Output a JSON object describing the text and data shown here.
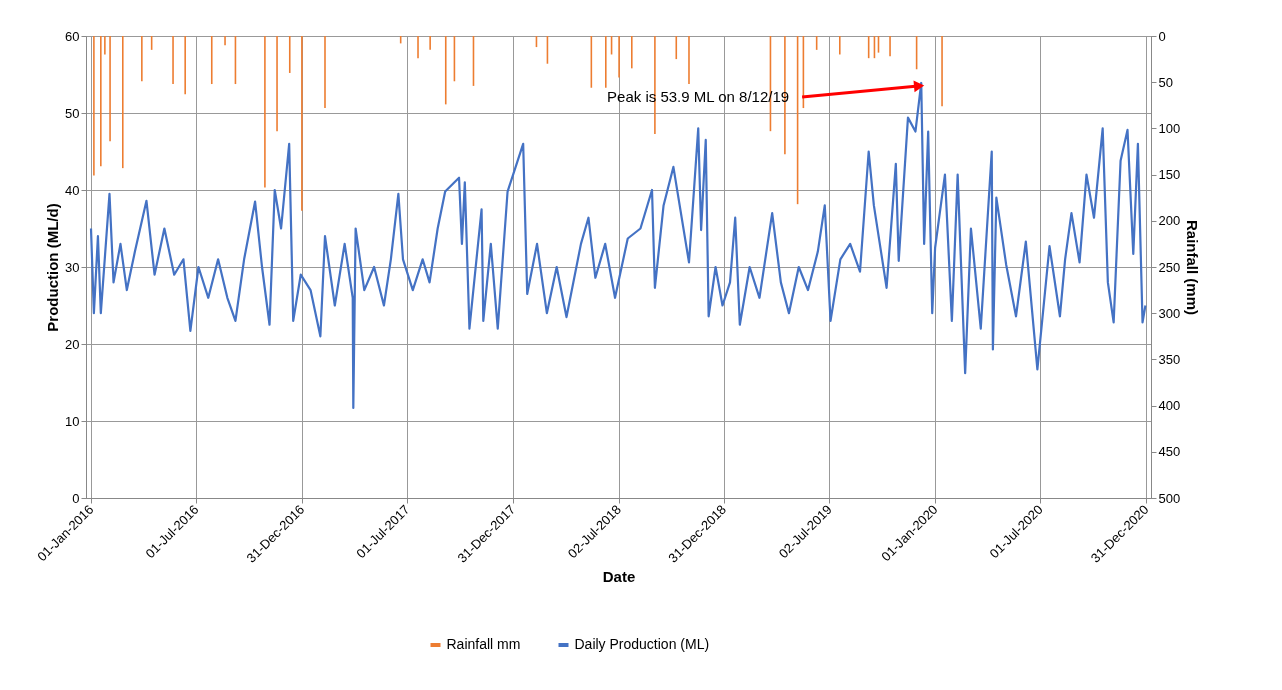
{
  "chart_data": {
    "type": "line",
    "xlabel": "Date",
    "ylabel": "Production (ML/d)",
    "y2label": "Rainfall (mm)",
    "xlim": [
      "2016-01-01",
      "2020-12-31"
    ],
    "xticks": [
      {
        "value": "2016-01-01",
        "label": "01-Jan-2016"
      },
      {
        "value": "2016-07-01",
        "label": "01-Jul-2016"
      },
      {
        "value": "2016-12-31",
        "label": "31-Dec-2016"
      },
      {
        "value": "2017-07-01",
        "label": "01-Jul-2017"
      },
      {
        "value": "2017-12-31",
        "label": "31-Dec-2017"
      },
      {
        "value": "2018-07-02",
        "label": "02-Jul-2018"
      },
      {
        "value": "2018-12-31",
        "label": "31-Dec-2018"
      },
      {
        "value": "2019-07-02",
        "label": "02-Jul-2019"
      },
      {
        "value": "2020-01-01",
        "label": "01-Jan-2020"
      },
      {
        "value": "2020-07-01",
        "label": "01-Jul-2020"
      },
      {
        "value": "2020-12-31",
        "label": "31-Dec-2020"
      }
    ],
    "ylim": [
      0,
      60
    ],
    "yticks": [
      0,
      10,
      20,
      30,
      40,
      50,
      60
    ],
    "y2lim": [
      500,
      0
    ],
    "y2ticks": [
      0,
      50,
      100,
      150,
      200,
      250,
      300,
      350,
      400,
      450,
      500
    ],
    "grid": true,
    "legend": "bottom",
    "annotations": [
      {
        "text": "Peak is 53.9 ML on 8/12/19",
        "x": "2019-12-08",
        "y": 53.9
      }
    ],
    "series": [
      {
        "name": "Rainfall mm",
        "type": "bar",
        "axis": "y2",
        "color": "#ed7d31",
        "x": [
          "2016-01-06",
          "2016-01-18",
          "2016-01-25",
          "2016-02-03",
          "2016-02-25",
          "2016-03-29",
          "2016-04-15",
          "2016-05-22",
          "2016-06-12",
          "2016-07-28",
          "2016-08-20",
          "2016-09-07",
          "2016-10-28",
          "2016-11-18",
          "2016-12-10",
          "2016-12-31",
          "2017-02-09",
          "2017-06-20",
          "2017-07-20",
          "2017-08-10",
          "2017-09-06",
          "2017-09-21",
          "2017-10-24",
          "2018-02-10",
          "2018-03-01",
          "2018-05-16",
          "2018-06-10",
          "2018-06-20",
          "2018-07-03",
          "2018-07-25",
          "2018-09-03",
          "2018-10-10",
          "2018-11-01",
          "2019-03-22",
          "2019-04-16",
          "2019-05-08",
          "2019-05-18",
          "2019-06-10",
          "2019-07-20",
          "2019-09-08",
          "2019-09-18",
          "2019-09-25",
          "2019-10-15",
          "2019-11-30",
          "2020-01-13"
        ],
        "values": [
          151,
          141,
          20,
          114,
          143,
          49,
          15,
          52,
          63,
          52,
          10,
          52,
          164,
          103,
          40,
          189,
          78,
          8,
          24,
          15,
          74,
          49,
          54,
          12,
          30,
          56,
          56,
          20,
          45,
          35,
          106,
          25,
          52,
          103,
          128,
          182,
          78,
          15,
          20,
          24,
          24,
          18,
          22,
          36,
          76
        ]
      },
      {
        "name": "Daily Production (ML)",
        "color": "#4472c4",
        "x": [
          "2016-01-01",
          "2016-01-06",
          "2016-01-13",
          "2016-01-18",
          "2016-02-02",
          "2016-02-09",
          "2016-02-21",
          "2016-03-03",
          "2016-03-17",
          "2016-04-06",
          "2016-04-20",
          "2016-05-07",
          "2016-05-24",
          "2016-06-09",
          "2016-06-21",
          "2016-07-05",
          "2016-07-22",
          "2016-08-08",
          "2016-08-24",
          "2016-09-07",
          "2016-09-22",
          "2016-10-11",
          "2016-10-23",
          "2016-11-05",
          "2016-11-14",
          "2016-11-25",
          "2016-12-09",
          "2016-12-16",
          "2016-12-29",
          "2017-01-15",
          "2017-02-01",
          "2017-02-09",
          "2017-02-26",
          "2017-03-15",
          "2017-03-29",
          "2017-03-30",
          "2017-04-03",
          "2017-04-18",
          "2017-05-05",
          "2017-05-22",
          "2017-06-03",
          "2017-06-16",
          "2017-06-24",
          "2017-07-11",
          "2017-07-28",
          "2017-08-09",
          "2017-08-23",
          "2017-09-05",
          "2017-09-29",
          "2017-10-04",
          "2017-10-09",
          "2017-10-17",
          "2017-11-07",
          "2017-11-10",
          "2017-11-23",
          "2017-12-05",
          "2017-12-22",
          "2018-01-18",
          "2018-01-25",
          "2018-02-11",
          "2018-02-28",
          "2018-03-17",
          "2018-04-03",
          "2018-04-28",
          "2018-05-11",
          "2018-05-23",
          "2018-06-09",
          "2018-06-26",
          "2018-07-18",
          "2018-08-09",
          "2018-08-29",
          "2018-09-03",
          "2018-09-18",
          "2018-10-05",
          "2018-11-01",
          "2018-11-17",
          "2018-11-22",
          "2018-11-30",
          "2018-12-05",
          "2018-12-17",
          "2018-12-29",
          "2019-01-11",
          "2019-01-20",
          "2019-01-28",
          "2019-02-14",
          "2019-03-03",
          "2019-03-25",
          "2019-04-09",
          "2019-04-23",
          "2019-05-10",
          "2019-05-26",
          "2019-06-12",
          "2019-06-24",
          "2019-07-04",
          "2019-07-21",
          "2019-08-07",
          "2019-08-24",
          "2019-09-08",
          "2019-09-17",
          "2019-10-09",
          "2019-10-25",
          "2019-10-30",
          "2019-11-15",
          "2019-11-28",
          "2019-12-08",
          "2019-12-13",
          "2019-12-20",
          "2019-12-27",
          "2020-01-01",
          "2020-01-18",
          "2020-01-30",
          "2020-02-09",
          "2020-02-22",
          "2020-03-03",
          "2020-03-20",
          "2020-04-08",
          "2020-04-10",
          "2020-04-16",
          "2020-05-03",
          "2020-05-20",
          "2020-06-06",
          "2020-06-26",
          "2020-07-17",
          "2020-08-04",
          "2020-08-13",
          "2020-08-24",
          "2020-09-07",
          "2020-09-19",
          "2020-10-02",
          "2020-10-17",
          "2020-10-26",
          "2020-11-05",
          "2020-11-17",
          "2020-11-29",
          "2020-12-09",
          "2020-12-17",
          "2020-12-25",
          "2020-12-30"
        ],
        "values": [
          35,
          24,
          34,
          24,
          39.5,
          28,
          33,
          27,
          32,
          38.6,
          29,
          35,
          29,
          31,
          21.7,
          30,
          26,
          31,
          26,
          23,
          31,
          38.5,
          30,
          22.5,
          40,
          35,
          46,
          23,
          29,
          27,
          21,
          34,
          25,
          33,
          26,
          11.7,
          35,
          27,
          30,
          25,
          31,
          39.5,
          31,
          27,
          31,
          28,
          35,
          39.8,
          41.6,
          33,
          41,
          22,
          37.5,
          23,
          33,
          22,
          39.8,
          46,
          26.5,
          33,
          24,
          30,
          23.5,
          33,
          36.4,
          28.6,
          33,
          26,
          33.7,
          35,
          40,
          27.3,
          38,
          43,
          30.6,
          48,
          34.8,
          46.5,
          23.6,
          30,
          25,
          28,
          36.4,
          22.5,
          30,
          26,
          37,
          28,
          24,
          30,
          27,
          32,
          38,
          23,
          31,
          33,
          29.4,
          45,
          38,
          27.3,
          43.4,
          30.8,
          49.4,
          47.6,
          53.9,
          33,
          47.6,
          24,
          32.5,
          42,
          23,
          42,
          16.2,
          35,
          22,
          45,
          19.3,
          39,
          30.3,
          23.6,
          33.3,
          16.7,
          32.7,
          23.6,
          31,
          37,
          30.6,
          42,
          36.4,
          48,
          28,
          22.8,
          43.8,
          47.8,
          31.7,
          46,
          22.8,
          25
        ]
      }
    ]
  }
}
